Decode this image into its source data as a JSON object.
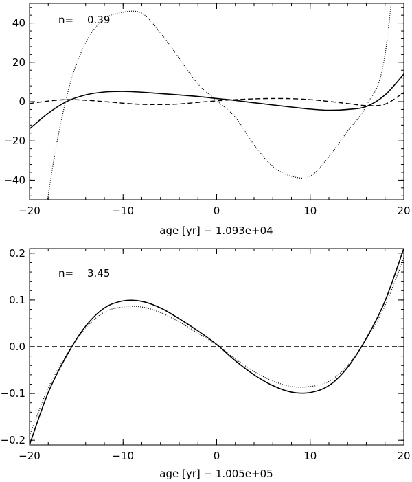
{
  "chart_data": [
    {
      "type": "line",
      "title": "",
      "annotation": {
        "label": "n=",
        "value": "0.39"
      },
      "xlabel": "age [yr] − 1.093e+04",
      "ylabel": "",
      "xlim": [
        -20,
        20
      ],
      "ylim": [
        -50,
        50
      ],
      "x_ticks": [
        -20,
        -10,
        0,
        10,
        20
      ],
      "y_ticks": [
        -40,
        -20,
        0,
        20,
        40
      ],
      "x_tick_labels": [
        "−20",
        "−10",
        "0",
        "10",
        "20"
      ],
      "y_tick_labels": [
        "−40",
        "−20",
        "0",
        "20",
        "40"
      ],
      "grid": false,
      "x": [
        -20,
        -18,
        -16,
        -14,
        -12,
        -10,
        -8,
        -6,
        -4,
        -2,
        0,
        2,
        4,
        6,
        8,
        10,
        12,
        14,
        16,
        18,
        20
      ],
      "series": [
        {
          "style": "solid",
          "values": [
            -13.9,
            -5.9,
            0.1,
            3.4,
            4.9,
            5.2,
            4.8,
            4.1,
            3.4,
            2.6,
            1.6,
            0.6,
            -0.6,
            -1.7,
            -2.8,
            -3.8,
            -4.4,
            -4.0,
            -2.5,
            3.4,
            14.0
          ]
        },
        {
          "style": "dashed",
          "values": [
            -1.0,
            0.3,
            1.0,
            0.7,
            0.0,
            -0.8,
            -1.4,
            -1.5,
            -1.2,
            -0.4,
            0.4,
            1.0,
            1.4,
            1.6,
            1.5,
            1.0,
            0.1,
            -1.0,
            -2.0,
            -1.3,
            4.6
          ]
        },
        {
          "style": "dotted",
          "values": [
            -131,
            -48,
            3,
            30,
            42,
            45.5,
            45,
            35,
            22,
            9,
            0.5,
            -8,
            -22,
            -33,
            -38,
            -38,
            -28,
            -15,
            -2,
            24,
            120
          ]
        }
      ]
    },
    {
      "type": "line",
      "title": "",
      "annotation": {
        "label": "n=",
        "value": "3.45"
      },
      "xlabel": "age [yr] − 1.005e+05",
      "ylabel": "",
      "xlim": [
        -20,
        20
      ],
      "ylim": [
        -0.21,
        0.21
      ],
      "x_ticks": [
        -20,
        -10,
        0,
        10,
        20
      ],
      "y_ticks": [
        -0.2,
        -0.1,
        0.0,
        0.1,
        0.2
      ],
      "x_tick_labels": [
        "−20",
        "−10",
        "0",
        "10",
        "20"
      ],
      "y_tick_labels": [
        "−0.2",
        "−0.1",
        "0.0",
        "0.1",
        "0.2"
      ],
      "grid": false,
      "x": [
        -20,
        -18,
        -16,
        -14,
        -12,
        -10,
        -8,
        -6,
        -4,
        -2,
        0,
        2,
        4,
        6,
        8,
        10,
        12,
        14,
        16,
        18,
        20
      ],
      "series": [
        {
          "style": "solid",
          "values": [
            -0.21,
            -0.098,
            -0.018,
            0.044,
            0.083,
            0.098,
            0.097,
            0.083,
            0.06,
            0.034,
            0.005,
            -0.03,
            -0.06,
            -0.083,
            -0.097,
            -0.098,
            -0.083,
            -0.044,
            0.018,
            0.098,
            0.21
          ]
        },
        {
          "style": "dashed",
          "values": [
            0.0,
            0.0,
            0.0,
            0.0,
            0.0,
            0.0,
            0.0,
            0.0,
            0.0,
            0.0,
            0.0,
            0.0,
            0.0,
            0.0,
            0.0,
            0.0,
            0.0,
            0.0,
            0.0,
            0.0,
            0.0
          ]
        },
        {
          "style": "dotted",
          "values": [
            -0.19,
            -0.088,
            -0.016,
            0.04,
            0.074,
            0.085,
            0.085,
            0.073,
            0.053,
            0.029,
            0.004,
            -0.026,
            -0.053,
            -0.073,
            -0.085,
            -0.085,
            -0.074,
            -0.04,
            0.016,
            0.088,
            0.19
          ]
        }
      ]
    }
  ]
}
